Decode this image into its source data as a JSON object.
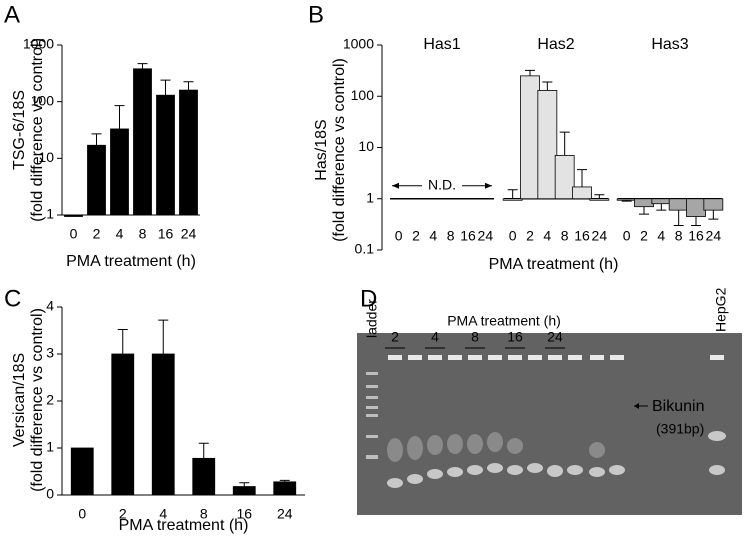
{
  "chart_data": [
    {
      "type": "bar",
      "panel": "A",
      "log_y": true,
      "ylabel": [
        "TSG-6/18S",
        "(fold difference vs control)"
      ],
      "xlabel": "PMA treatment (h)",
      "categories": [
        "0",
        "2",
        "4",
        "8",
        "16",
        "24"
      ],
      "values": [
        1,
        17,
        33,
        380,
        130,
        160
      ],
      "errors": [
        null,
        10,
        52,
        90,
        110,
        65
      ],
      "color": "#000000",
      "ylim": [
        1,
        1000
      ],
      "yticks": [
        1,
        10,
        100,
        1000
      ]
    },
    {
      "type": "bar",
      "panel": "B",
      "log_y": true,
      "baseline": 1,
      "ylabel": [
        "Has/18S",
        "(fold difference vs control)"
      ],
      "xlabel": "PMA treatment (h)",
      "categories": [
        "0",
        "2",
        "4",
        "8",
        "16",
        "24"
      ],
      "series": [
        {
          "name": "Has1",
          "annotation": "N.D.",
          "values": [
            null,
            null,
            null,
            null,
            null,
            null
          ],
          "errors": [
            null,
            null,
            null,
            null,
            null,
            null
          ]
        },
        {
          "name": "Has2",
          "color": "#e3e3e3",
          "values": [
            1,
            250,
            130,
            7,
            1.7,
            1
          ],
          "errors": [
            0.5,
            70,
            60,
            13,
            2,
            0.2
          ]
        },
        {
          "name": "Has3",
          "color": "#a6a6a6",
          "values": [
            0.95,
            0.7,
            0.8,
            0.6,
            0.45,
            0.6
          ],
          "errors": [
            0.05,
            0.2,
            0.2,
            0.3,
            0.15,
            0.2
          ]
        }
      ],
      "ylim": [
        0.1,
        1000
      ],
      "yticks": [
        0.1,
        1,
        10,
        100,
        1000
      ]
    },
    {
      "type": "bar",
      "panel": "C",
      "log_y": false,
      "ylabel": [
        "Versican/18S",
        "(fold difference vs control)"
      ],
      "xlabel": "PMA treatment (h)",
      "categories": [
        "0",
        "2",
        "4",
        "8",
        "16",
        "24"
      ],
      "values": [
        1,
        3,
        3,
        0.78,
        0.18,
        0.28
      ],
      "errors": [
        null,
        0.52,
        0.72,
        0.32,
        0.08,
        0.03
      ],
      "color": "#000000",
      "ylim": [
        0,
        4
      ],
      "yticks": [
        0,
        1,
        2,
        3,
        4
      ]
    }
  ],
  "gel": {
    "panel": "D",
    "title": "PMA treatment (h)",
    "ladder": "ladder",
    "lanes": [
      "2",
      "4",
      "8",
      "16",
      "24"
    ],
    "control": "HepG2",
    "band_label": "Bikunin",
    "band_size": "(391bp)"
  }
}
